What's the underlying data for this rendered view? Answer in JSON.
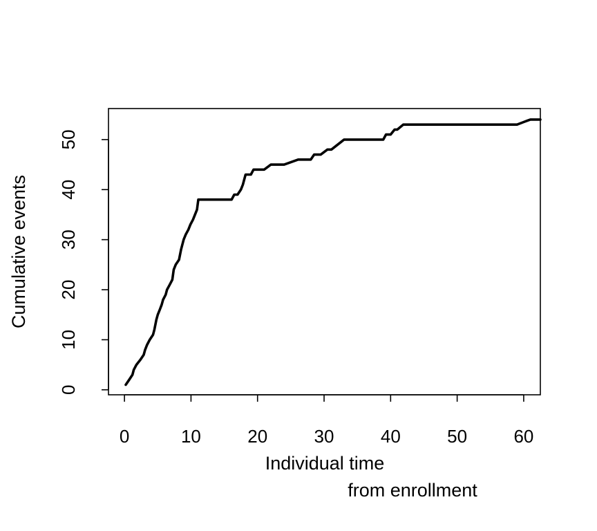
{
  "chart_data": {
    "type": "line",
    "title": "",
    "xlabel_line1": "Individual time",
    "xlabel_line2": "from enrollment",
    "ylabel": "Cumulative events",
    "xlim": [
      -2.4,
      62.5
    ],
    "ylim": [
      -1,
      56.2
    ],
    "xticks": [
      0,
      10,
      20,
      30,
      40,
      50,
      60
    ],
    "yticks": [
      0,
      10,
      20,
      30,
      40,
      50
    ],
    "grid": false,
    "series": [
      {
        "color": "#000000",
        "x": [
          0.2,
          0.7,
          1.2,
          1.4,
          1.8,
          2.4,
          2.9,
          3.1,
          3.4,
          3.8,
          4.3,
          4.5,
          4.8,
          5.0,
          5.3,
          5.6,
          5.8,
          6.2,
          6.4,
          6.8,
          7.2,
          7.4,
          7.7,
          8.2,
          8.5,
          8.9,
          9.2,
          9.6,
          9.9,
          10.3,
          10.6,
          10.9,
          11.1,
          11.4,
          16.1,
          16.5,
          17.0,
          17.5,
          17.8,
          18.2,
          18.5,
          19.0,
          19.4,
          19.8,
          20.3,
          21.0,
          22.0,
          24.0,
          26.1,
          28.0,
          28.5,
          29.5,
          30.5,
          31.1,
          33.0,
          34.5,
          36.0,
          38.9,
          39.3,
          40.0,
          40.6,
          41.0,
          41.9,
          45.0,
          50.0,
          55.0,
          59.0,
          60.0,
          61.0,
          62.0,
          62.5
        ],
        "y": [
          1,
          2,
          3,
          4,
          5,
          6,
          7,
          8,
          9,
          10,
          11,
          12,
          14,
          15,
          16,
          17,
          18,
          19,
          20,
          21,
          22,
          24,
          25,
          26,
          28,
          30,
          31,
          32,
          33,
          34,
          35,
          36,
          38,
          38,
          38,
          39,
          39,
          40,
          41,
          43,
          43,
          43,
          44,
          44,
          44,
          44,
          45,
          45,
          46,
          46,
          47,
          47,
          48,
          48,
          50,
          50,
          50,
          50,
          51,
          51,
          52,
          52,
          53,
          53,
          53,
          53,
          53,
          53.5,
          54,
          54,
          54
        ]
      }
    ]
  }
}
